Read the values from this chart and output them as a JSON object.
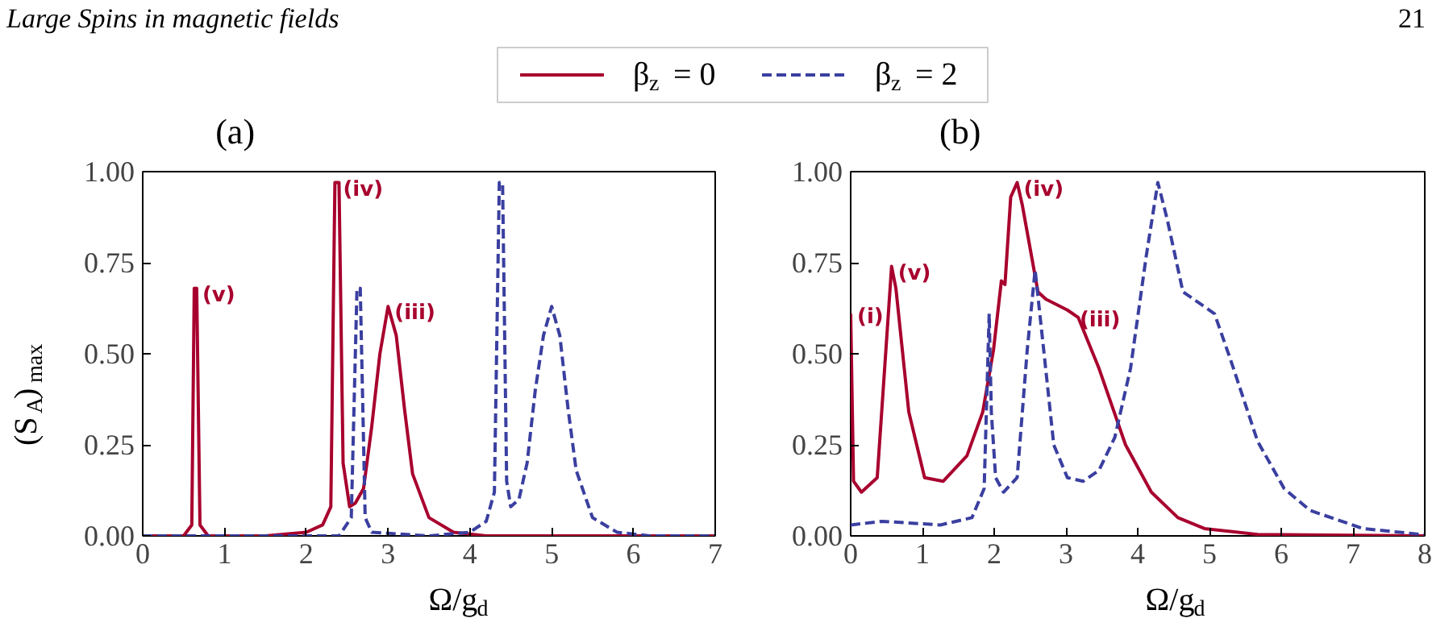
{
  "chart_data": [
    {
      "type": "line",
      "title": "(a)",
      "xlabel": "Ω/g$_{d}$",
      "ylabel": "(S$_{A}$)$_{max}$",
      "legend": "top",
      "annotations": [
        "Large Spins in magnetic fields",
        "21",
        {
          "text": "(v)",
          "x": 0.65,
          "y": 0.68
        },
        {
          "text": "(iv)",
          "x": 2.37,
          "y": 0.97
        },
        {
          "text": "(iii)",
          "x": 3.0,
          "y": 0.63
        }
      ],
      "xlim": [
        0,
        7
      ],
      "ylim": [
        0,
        1
      ],
      "xticks": [
        0,
        1,
        2,
        3,
        4,
        5,
        6,
        7
      ],
      "yticks": [
        {
          "value": 0,
          "label": "0.00"
        },
        {
          "value": 0.25,
          "label": "0.25"
        },
        {
          "value": 0.5,
          "label": "0.50"
        },
        {
          "value": 0.75,
          "label": "0.75"
        },
        {
          "value": 1,
          "label": "1.00"
        }
      ],
      "series": [
        {
          "name": "β$_{z}$ = 0",
          "color": "#a8002e",
          "line_style": "solid",
          "x": [
            0,
            0.5,
            0.6,
            0.63,
            0.66,
            0.7,
            0.8,
            1.5,
            2.0,
            2.2,
            2.3,
            2.35,
            2.4,
            2.45,
            2.53,
            2.6,
            2.7,
            2.8,
            2.9,
            3.0,
            3.1,
            3.2,
            3.3,
            3.5,
            3.8,
            4.2,
            7
          ],
          "values": [
            0,
            0,
            0.03,
            0.68,
            0.68,
            0.03,
            0,
            0,
            0.01,
            0.03,
            0.08,
            0.97,
            0.97,
            0.2,
            0.08,
            0.09,
            0.13,
            0.3,
            0.5,
            0.63,
            0.55,
            0.35,
            0.17,
            0.05,
            0.01,
            0,
            0
          ]
        },
        {
          "name": "β$_{z}$ = 2",
          "color": "#3a3fa0",
          "line_style": "dashed",
          "x": [
            0,
            2.4,
            2.55,
            2.62,
            2.66,
            2.72,
            2.8,
            3.5,
            4.0,
            4.2,
            4.3,
            4.36,
            4.4,
            4.45,
            4.5,
            4.6,
            4.7,
            4.8,
            4.9,
            5.0,
            5.1,
            5.2,
            5.3,
            5.5,
            5.8,
            6.2,
            7
          ],
          "values": [
            0,
            0,
            0.05,
            0.68,
            0.68,
            0.05,
            0.01,
            0,
            0.01,
            0.04,
            0.12,
            0.97,
            0.97,
            0.15,
            0.08,
            0.1,
            0.2,
            0.4,
            0.55,
            0.63,
            0.55,
            0.35,
            0.18,
            0.05,
            0.01,
            0,
            0
          ]
        }
      ]
    },
    {
      "type": "line",
      "title": "(b)",
      "xlabel": "Ω/g$_{d}$",
      "annotations": [
        {
          "text": "(i)",
          "x": 0,
          "y": 0.62
        },
        {
          "text": "(v)",
          "x": 0.57,
          "y": 0.74
        },
        {
          "text": "(iv)",
          "x": 2.32,
          "y": 0.97
        },
        {
          "text": "(iii)",
          "x": 3.1,
          "y": 0.61
        }
      ],
      "xlim": [
        0,
        8
      ],
      "ylim": [
        0,
        1
      ],
      "xticks": [
        0,
        1,
        2,
        3,
        4,
        5,
        6,
        7,
        8
      ],
      "yticks": [
        {
          "value": 0,
          "label": "0.00"
        },
        {
          "value": 0.25,
          "label": "0.25"
        },
        {
          "value": 0.5,
          "label": "0.50"
        },
        {
          "value": 0.75,
          "label": "0.75"
        },
        {
          "value": 1,
          "label": "1.00"
        }
      ],
      "series": [
        {
          "color": "#a8002e",
          "line_style": "solid",
          "x": [
            0,
            0.04,
            0.15,
            0.37,
            0.57,
            0.63,
            0.81,
            1.03,
            1.29,
            1.62,
            1.84,
            1.99,
            2.1,
            2.15,
            2.23,
            2.32,
            2.39,
            2.61,
            2.72,
            3.02,
            3.17,
            3.46,
            3.83,
            4.19,
            4.56,
            4.93,
            5.67,
            8
          ],
          "values": [
            0.61,
            0.15,
            0.12,
            0.16,
            0.74,
            0.68,
            0.34,
            0.16,
            0.15,
            0.22,
            0.34,
            0.51,
            0.7,
            0.69,
            0.93,
            0.97,
            0.91,
            0.67,
            0.65,
            0.62,
            0.6,
            0.46,
            0.25,
            0.12,
            0.05,
            0.02,
            0.004,
            0
          ]
        },
        {
          "color": "#3a3fa0",
          "line_style": "dashed",
          "x": [
            0,
            0.44,
            1.25,
            1.69,
            1.86,
            1.93,
            1.96,
            2.02,
            2.13,
            2.32,
            2.46,
            2.57,
            2.69,
            2.83,
            3.02,
            3.24,
            3.46,
            3.68,
            3.9,
            4.12,
            4.28,
            4.41,
            4.63,
            4.85,
            5.07,
            5.3,
            5.67,
            6.04,
            6.4,
            7.14,
            8
          ],
          "values": [
            0.03,
            0.04,
            0.03,
            0.05,
            0.13,
            0.61,
            0.34,
            0.16,
            0.12,
            0.16,
            0.51,
            0.73,
            0.51,
            0.25,
            0.16,
            0.15,
            0.18,
            0.27,
            0.46,
            0.77,
            0.97,
            0.87,
            0.67,
            0.64,
            0.61,
            0.48,
            0.26,
            0.13,
            0.07,
            0.02,
            0.003
          ]
        }
      ]
    }
  ]
}
